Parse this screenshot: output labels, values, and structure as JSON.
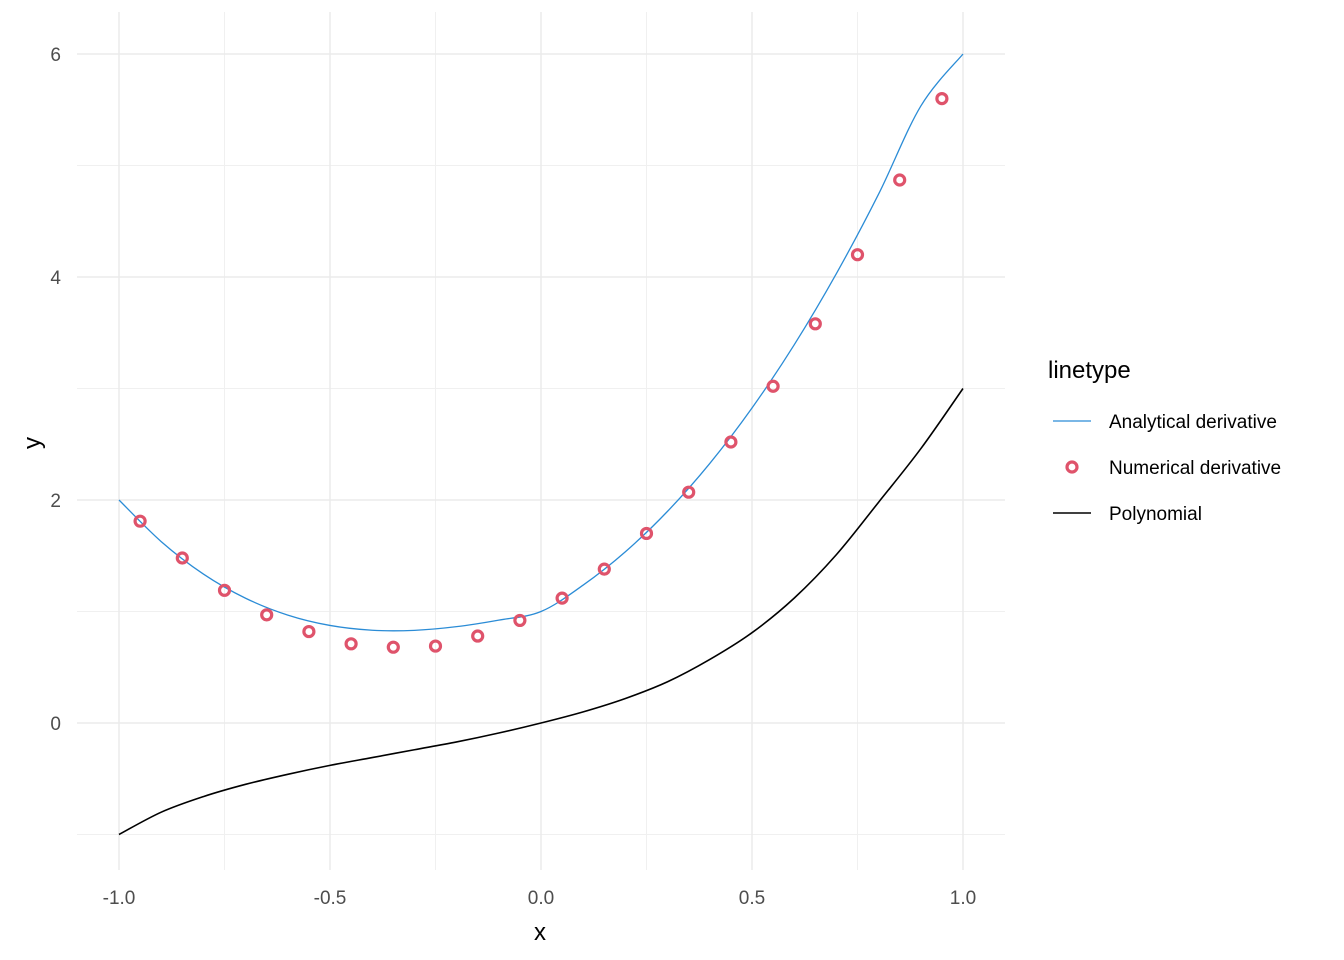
{
  "chart_data": {
    "type": "line",
    "xlabel": "x",
    "ylabel": "y",
    "xlim": [
      -1.0,
      1.0
    ],
    "ylim": [
      -1.0,
      6.0
    ],
    "x_ticks": [
      -1.0,
      -0.5,
      0.0,
      0.5,
      1.0
    ],
    "x_tick_labels": [
      "-1.0",
      "-0.5",
      "0.0",
      "0.5",
      "1.0"
    ],
    "y_ticks": [
      0,
      2,
      4,
      6
    ],
    "y_tick_labels": [
      "0",
      "2",
      "4",
      "6"
    ],
    "grid": true,
    "legend": {
      "title": "linetype",
      "placement": "right",
      "entries": [
        "Analytical derivative",
        "Numerical derivative",
        "Polynomial"
      ]
    },
    "series": [
      {
        "name": "Analytical derivative",
        "kind": "line",
        "color": "#2b8cd6",
        "x": [
          -1.0,
          -0.9,
          -0.8,
          -0.7,
          -0.6,
          -0.5,
          -0.4,
          -0.3,
          -0.2,
          -0.1,
          0.0,
          0.1,
          0.2,
          0.3,
          0.4,
          0.5,
          0.6,
          0.7,
          0.8,
          0.9,
          1.0
        ],
        "y": [
          2.0,
          1.627,
          1.336,
          1.119,
          0.968,
          0.875,
          0.832,
          0.831,
          0.864,
          0.923,
          1.0,
          1.237,
          1.536,
          1.899,
          2.328,
          2.825,
          3.392,
          4.031,
          4.744,
          5.533,
          6.0
        ]
      },
      {
        "name": "Numerical derivative",
        "kind": "points",
        "color": "#df536b",
        "x": [
          -0.95,
          -0.85,
          -0.75,
          -0.65,
          -0.55,
          -0.45,
          -0.35,
          -0.25,
          -0.15,
          -0.05,
          0.05,
          0.15,
          0.25,
          0.35,
          0.45,
          0.55,
          0.65,
          0.75,
          0.85,
          0.95
        ],
        "y": [
          1.81,
          1.48,
          1.19,
          0.97,
          0.82,
          0.71,
          0.68,
          0.69,
          0.78,
          0.92,
          1.12,
          1.38,
          1.7,
          2.07,
          2.52,
          3.02,
          3.58,
          4.2,
          4.87,
          5.6
        ]
      },
      {
        "name": "Polynomial",
        "kind": "line",
        "color": "#000000",
        "x": [
          -1.0,
          -0.9,
          -0.8,
          -0.7,
          -0.6,
          -0.5,
          -0.4,
          -0.3,
          -0.2,
          -0.1,
          0.0,
          0.1,
          0.2,
          0.3,
          0.4,
          0.5,
          0.6,
          0.7,
          0.8,
          0.9,
          1.0
        ],
        "y": [
          -1.0,
          -0.8,
          -0.66,
          -0.55,
          -0.46,
          -0.38,
          -0.31,
          -0.24,
          -0.17,
          -0.09,
          0.0,
          0.1,
          0.22,
          0.37,
          0.57,
          0.81,
          1.12,
          1.51,
          1.98,
          2.46,
          3.0
        ]
      }
    ]
  }
}
